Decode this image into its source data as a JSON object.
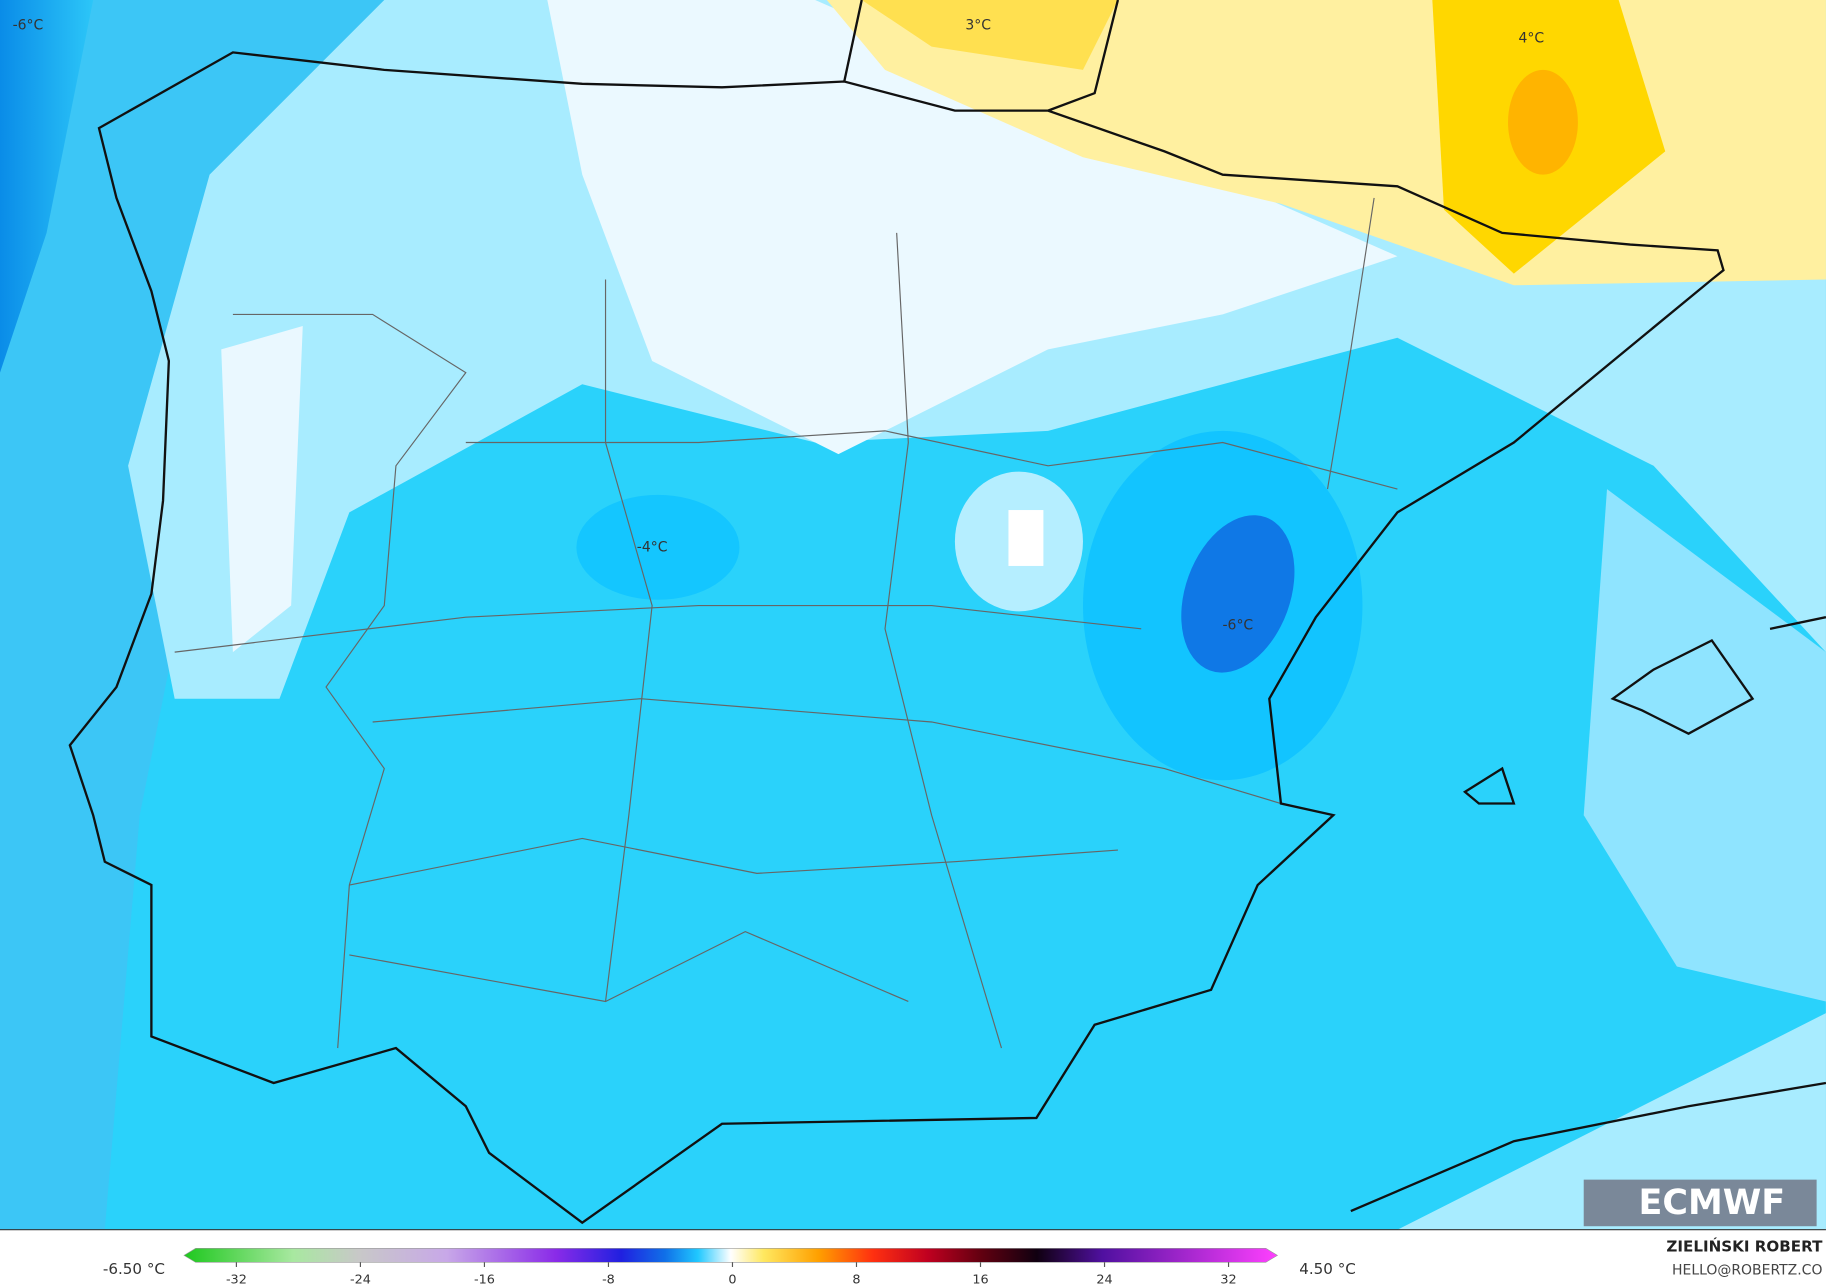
{
  "map": {
    "labels": [
      "-6°C",
      "3°C",
      "4°C",
      "-4°C",
      "-6°C"
    ]
  },
  "colorbar": {
    "min_label": "-6.50 °C",
    "max_label": "4.50 °C",
    "ticks": [
      -32,
      -24,
      -16,
      -8,
      0,
      8,
      16,
      24,
      32
    ]
  },
  "credit": {
    "name": "ZIELIŃSKI ROBERT",
    "email": "HELLO@ROBERTZ.CO"
  },
  "logo": "ECMWF"
}
